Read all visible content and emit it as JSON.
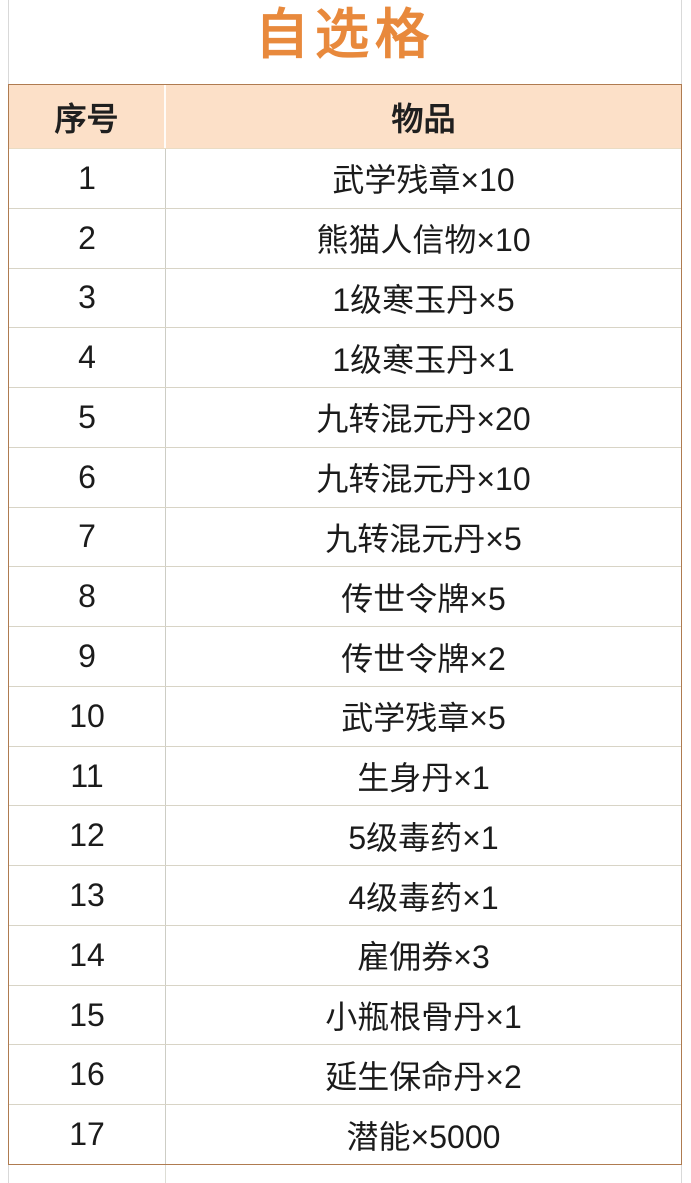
{
  "title": "自选格",
  "table": {
    "headers": [
      "序号",
      "物品"
    ],
    "rows": [
      {
        "no": "1",
        "item": "武学残章×10"
      },
      {
        "no": "2",
        "item": "熊猫人信物×10"
      },
      {
        "no": "3",
        "item": "1级寒玉丹×5"
      },
      {
        "no": "4",
        "item": "1级寒玉丹×1"
      },
      {
        "no": "5",
        "item": "九转混元丹×20"
      },
      {
        "no": "6",
        "item": "九转混元丹×10"
      },
      {
        "no": "7",
        "item": "九转混元丹×5"
      },
      {
        "no": "8",
        "item": "传世令牌×5"
      },
      {
        "no": "9",
        "item": "传世令牌×2"
      },
      {
        "no": "10",
        "item": "武学残章×5"
      },
      {
        "no": "11",
        "item": "生身丹×1"
      },
      {
        "no": "12",
        "item": "5级毒药×1"
      },
      {
        "no": "13",
        "item": "4级毒药×1"
      },
      {
        "no": "14",
        "item": "雇佣券×3"
      },
      {
        "no": "15",
        "item": "小瓶根骨丹×1"
      },
      {
        "no": "16",
        "item": "延生保命丹×2"
      },
      {
        "no": "17",
        "item": "潜能×5000"
      }
    ]
  },
  "colors": {
    "title": "#E8893C",
    "header_bg": "#FCE0C8",
    "header_text": "#1F1F1F",
    "body_text": "#1B1B1B",
    "outer_border": "#AF7B50",
    "row_border": "#D8D4C6",
    "column_border": "#CDCDC5",
    "title_box_border": "#D9D9D9",
    "page_bg": "#FFFFFF"
  }
}
